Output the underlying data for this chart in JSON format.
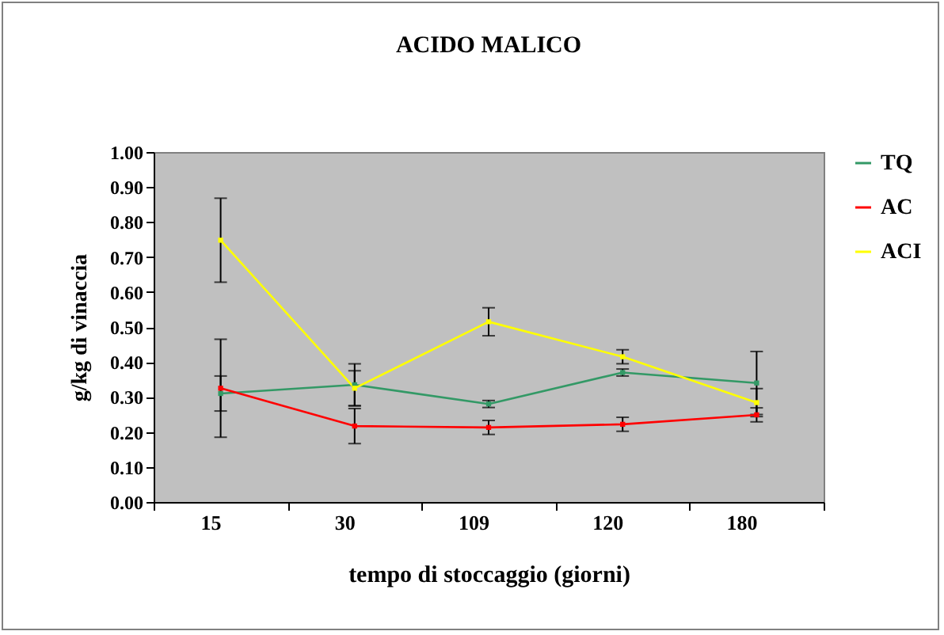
{
  "chart_data": {
    "type": "line",
    "title": "ACIDO MALICO",
    "xlabel": "tempo di stoccaggio (giorni)",
    "ylabel": "g/kg di vinaccia",
    "categories": [
      "15",
      "30",
      "109",
      "120",
      "180"
    ],
    "series": [
      {
        "name": "TQ",
        "color": "#339966",
        "values": [
          0.31,
          0.335,
          0.28,
          0.37,
          0.34
        ],
        "errors": [
          0.05,
          0.06,
          0.01,
          0.01,
          0.09
        ]
      },
      {
        "name": "AC",
        "color": "#ff0000",
        "values": [
          0.325,
          0.217,
          0.213,
          0.222,
          0.249
        ],
        "errors": [
          0.14,
          0.05,
          0.02,
          0.02,
          0.02
        ]
      },
      {
        "name": "ACI",
        "color": "#ffff00",
        "values": [
          0.748,
          0.325,
          0.515,
          0.415,
          0.284
        ],
        "errors": [
          0.12,
          0.05,
          0.04,
          0.02,
          0.04
        ]
      }
    ],
    "ylim": [
      0,
      1
    ],
    "yticks": [
      {
        "value": 0,
        "label": "0.00"
      },
      {
        "value": 0.1,
        "label": "0.10"
      },
      {
        "value": 0.2,
        "label": "0.20"
      },
      {
        "value": 0.3,
        "label": "0.30"
      },
      {
        "value": 0.4,
        "label": "0.40"
      },
      {
        "value": 0.5,
        "label": "0.50"
      },
      {
        "value": 0.6,
        "label": "0.60"
      },
      {
        "value": 0.7,
        "label": "0.70"
      },
      {
        "value": 0.8,
        "label": "0.80"
      },
      {
        "value": 0.9,
        "label": "0.90"
      },
      {
        "value": 1,
        "label": "1.00"
      }
    ],
    "grid": false,
    "legend": "right",
    "marker": "square",
    "line_style": "solid"
  }
}
